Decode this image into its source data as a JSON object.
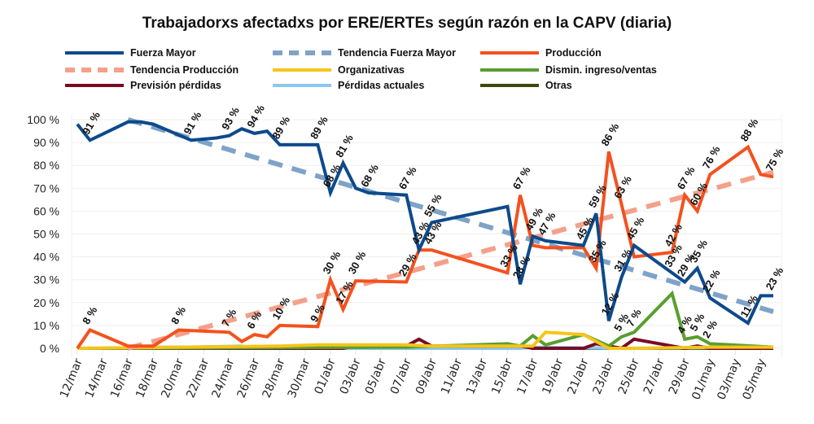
{
  "chart_data": {
    "type": "line",
    "title": "Trabajadorxs afectadxs por ERE/ERTEs según razón en la CAPV (diaria)",
    "xlabel": "",
    "ylabel": "",
    "ylim": [
      0,
      100
    ],
    "y_ticks": [
      "0 %",
      "10 %",
      "20 %",
      "30 %",
      "40 %",
      "50 %",
      "60 %",
      "70 %",
      "80 %",
      "90 %",
      "100 %"
    ],
    "x_start": "12/mar",
    "x_end": "06/may",
    "x_tick_labels": [
      "12/mar",
      "14/mar",
      "16/mar",
      "18/mar",
      "20/mar",
      "22/mar",
      "24/mar",
      "26/mar",
      "28/mar",
      "30/mar",
      "01/abr",
      "03/abr",
      "05/abr",
      "07/abr",
      "09/abr",
      "11/abr",
      "13/abr",
      "15/abr",
      "17/abr",
      "19/abr",
      "21/abr",
      "23/abr",
      "25/abr",
      "27/abr",
      "29/abr",
      "01/may",
      "03/may",
      "05/may"
    ],
    "grid": true,
    "legend_position": "top",
    "series": [
      {
        "name": "Fuerza Mayor",
        "color": "#0d4a8c",
        "style": "solid",
        "points": [
          [
            0,
            98
          ],
          [
            1,
            91
          ],
          [
            4,
            99
          ],
          [
            5,
            99
          ],
          [
            6,
            98
          ],
          [
            9,
            91
          ],
          [
            11,
            92
          ],
          [
            12,
            93
          ],
          [
            13,
            96
          ],
          [
            14,
            94
          ],
          [
            15,
            95
          ],
          [
            16,
            89
          ],
          [
            19,
            89
          ],
          [
            20,
            68
          ],
          [
            21,
            81
          ],
          [
            22,
            70
          ],
          [
            23,
            68
          ],
          [
            26,
            67
          ],
          [
            27,
            43
          ],
          [
            28,
            55
          ],
          [
            34,
            62
          ],
          [
            35,
            28
          ],
          [
            36,
            49
          ],
          [
            37,
            47
          ],
          [
            40,
            45
          ],
          [
            41,
            59
          ],
          [
            42,
            12
          ],
          [
            43,
            31
          ],
          [
            44,
            45
          ],
          [
            47,
            33
          ],
          [
            48,
            29
          ],
          [
            49,
            35
          ],
          [
            50,
            22
          ],
          [
            53,
            11
          ],
          [
            54,
            23
          ],
          [
            55,
            23
          ]
        ],
        "labels": [
          [
            1,
            91
          ],
          [
            9,
            91
          ],
          [
            12,
            93
          ],
          [
            14,
            94
          ],
          [
            16,
            89
          ],
          [
            19,
            89
          ],
          [
            20,
            68
          ],
          [
            21,
            81
          ],
          [
            23,
            68
          ],
          [
            26,
            67
          ],
          [
            27,
            43
          ],
          [
            28,
            55
          ],
          [
            35,
            28
          ],
          [
            36,
            49
          ],
          [
            37,
            47
          ],
          [
            40,
            45
          ],
          [
            41,
            59
          ],
          [
            42,
            12
          ],
          [
            43,
            31
          ],
          [
            44,
            45
          ],
          [
            47,
            33
          ],
          [
            48,
            29
          ],
          [
            49,
            35
          ],
          [
            50,
            22
          ],
          [
            53,
            11
          ],
          [
            55,
            23
          ]
        ]
      },
      {
        "name": "Tendencia Fuerza Mayor",
        "color": "#7fa3c8",
        "style": "dashed",
        "points": [
          [
            4,
            100
          ],
          [
            55,
            16
          ]
        ]
      },
      {
        "name": "Producción",
        "color": "#f4511e",
        "style": "solid",
        "points": [
          [
            0,
            0
          ],
          [
            1,
            8
          ],
          [
            4,
            1
          ],
          [
            6,
            1
          ],
          [
            8,
            8
          ],
          [
            10,
            7.5
          ],
          [
            12,
            7
          ],
          [
            13,
            3
          ],
          [
            14,
            6
          ],
          [
            15,
            5
          ],
          [
            16,
            10
          ],
          [
            19,
            9.5
          ],
          [
            20,
            30
          ],
          [
            21,
            17
          ],
          [
            22,
            29.5
          ],
          [
            26,
            29
          ],
          [
            27,
            43
          ],
          [
            28,
            43
          ],
          [
            34,
            33
          ],
          [
            35,
            67
          ],
          [
            36,
            45
          ],
          [
            37,
            44
          ],
          [
            40,
            44
          ],
          [
            41,
            35
          ],
          [
            42,
            86
          ],
          [
            43,
            63
          ],
          [
            44,
            40
          ],
          [
            47,
            42
          ],
          [
            48,
            67
          ],
          [
            49,
            60
          ],
          [
            50,
            76
          ],
          [
            53,
            88
          ],
          [
            54,
            76
          ],
          [
            55,
            75
          ]
        ],
        "labels": [
          [
            1,
            8
          ],
          [
            8,
            8
          ],
          [
            12,
            7
          ],
          [
            14,
            6
          ],
          [
            16,
            10
          ],
          [
            19,
            9
          ],
          [
            20,
            30
          ],
          [
            21,
            17
          ],
          [
            22,
            30
          ],
          [
            26,
            29
          ],
          [
            28,
            43
          ],
          [
            34,
            33
          ],
          [
            35,
            67
          ],
          [
            41,
            35
          ],
          [
            42,
            86
          ],
          [
            43,
            63
          ],
          [
            47,
            42
          ],
          [
            48,
            67
          ],
          [
            49,
            60
          ],
          [
            50,
            76
          ],
          [
            53,
            88
          ],
          [
            55,
            75
          ]
        ]
      },
      {
        "name": "Tendencia Producción",
        "color": "#f4a08a",
        "style": "dashed",
        "points": [
          [
            4,
            0
          ],
          [
            55,
            77
          ]
        ]
      },
      {
        "name": "Organizativas",
        "color": "#f5c518",
        "style": "solid",
        "points": [
          [
            0,
            0
          ],
          [
            16,
            1
          ],
          [
            19,
            1.5
          ],
          [
            26,
            1.5
          ],
          [
            28,
            1
          ],
          [
            34,
            1
          ],
          [
            36,
            1
          ],
          [
            37,
            7
          ],
          [
            40,
            6
          ],
          [
            42,
            0
          ],
          [
            44,
            0
          ],
          [
            50,
            0.5
          ],
          [
            55,
            0.5
          ]
        ]
      },
      {
        "name": "Dismin. ingreso/ventas",
        "color": "#5a9e2f",
        "style": "solid",
        "points": [
          [
            0,
            0
          ],
          [
            26,
            0.5
          ],
          [
            34,
            2
          ],
          [
            35,
            1
          ],
          [
            36,
            5.5
          ],
          [
            37,
            1.5
          ],
          [
            40,
            6
          ],
          [
            42,
            1
          ],
          [
            43,
            5
          ],
          [
            44,
            7
          ],
          [
            47,
            24
          ],
          [
            48,
            4
          ],
          [
            49,
            5
          ],
          [
            50,
            2
          ],
          [
            55,
            0.5
          ]
        ],
        "labels": [
          [
            43,
            5
          ],
          [
            44,
            7
          ],
          [
            48,
            4
          ],
          [
            49,
            5
          ],
          [
            50,
            2
          ]
        ]
      },
      {
        "name": "Previsión pérdidas",
        "color": "#7a0a23",
        "style": "solid",
        "points": [
          [
            0,
            0
          ],
          [
            21,
            0
          ],
          [
            22,
            1
          ],
          [
            26,
            1
          ],
          [
            27,
            4
          ],
          [
            28,
            1
          ],
          [
            34,
            1
          ],
          [
            35,
            1
          ],
          [
            36,
            0
          ],
          [
            40,
            0
          ],
          [
            41,
            2
          ],
          [
            42,
            1
          ],
          [
            43,
            0
          ],
          [
            44,
            4
          ],
          [
            47,
            1
          ],
          [
            48,
            0
          ],
          [
            49,
            1
          ],
          [
            50,
            0
          ],
          [
            55,
            0
          ]
        ]
      },
      {
        "name": "Pérdidas actuales",
        "color": "#8cc8f0",
        "style": "solid",
        "points": [
          [
            0,
            0
          ],
          [
            4,
            0
          ],
          [
            6,
            0.5
          ],
          [
            9,
            0.5
          ],
          [
            13,
            1
          ],
          [
            14,
            0
          ],
          [
            35,
            0
          ],
          [
            36,
            0.5
          ],
          [
            43,
            0
          ],
          [
            55,
            0.5
          ]
        ]
      },
      {
        "name": "Otras",
        "color": "#3a4a0c",
        "style": "solid",
        "points": [
          [
            0,
            0
          ],
          [
            15,
            0
          ],
          [
            16,
            0.5
          ],
          [
            34,
            1
          ],
          [
            35,
            1
          ],
          [
            36,
            0
          ],
          [
            55,
            0
          ]
        ]
      }
    ]
  }
}
